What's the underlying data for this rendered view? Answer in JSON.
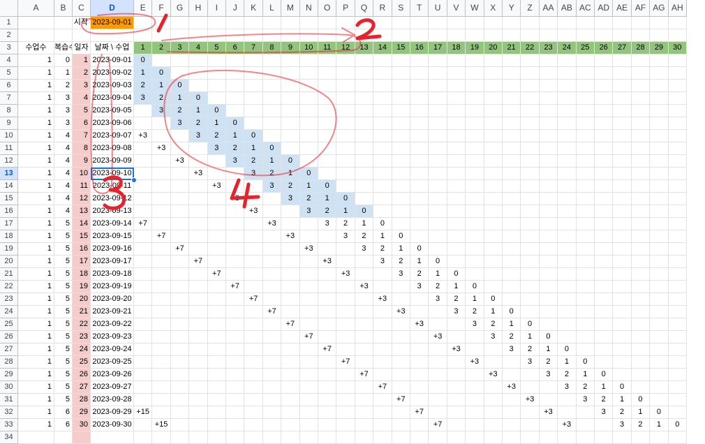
{
  "sheet": {
    "columns": [
      "A",
      "B",
      "C",
      "D",
      "E",
      "F",
      "G",
      "H",
      "I",
      "J",
      "K",
      "L",
      "M",
      "N",
      "O",
      "P",
      "Q",
      "R",
      "S",
      "T",
      "U",
      "V",
      "W",
      "X",
      "Y",
      "Z",
      "AA",
      "AB",
      "AC",
      "AD",
      "AE",
      "AF",
      "AG",
      "AH"
    ],
    "selected_column": "D",
    "selected_row": 13,
    "start_label": "시작",
    "start_date": "2023-09-01",
    "headers": [
      "수업수",
      "복습수",
      "일자",
      "날짜 \\ 수업"
    ],
    "lesson_numbers": [
      "1",
      "2",
      "3",
      "4",
      "5",
      "6",
      "7",
      "8",
      "9",
      "10",
      "11",
      "12",
      "13",
      "14",
      "15",
      "16",
      "17",
      "18",
      "19",
      "20",
      "21",
      "22",
      "23",
      "24",
      "25",
      "26",
      "27",
      "28",
      "29",
      "30"
    ],
    "data_rows": [
      {
        "row": 4,
        "a": "1",
        "b": "0",
        "c": "1",
        "d": "2023-09-01",
        "cells": [
          "0"
        ]
      },
      {
        "row": 5,
        "a": "1",
        "b": "1",
        "c": "2",
        "d": "2023-09-02",
        "cells": [
          "1",
          "0"
        ]
      },
      {
        "row": 6,
        "a": "1",
        "b": "2",
        "c": "3",
        "d": "2023-09-03",
        "cells": [
          "2",
          "1",
          "0"
        ]
      },
      {
        "row": 7,
        "a": "1",
        "b": "3",
        "c": "4",
        "d": "2023-09-04",
        "cells": [
          "3",
          "2",
          "1",
          "0"
        ]
      },
      {
        "row": 8,
        "a": "1",
        "b": "3",
        "c": "5",
        "d": "2023-09-05",
        "cells": [
          "",
          "3",
          "2",
          "1",
          "0"
        ]
      },
      {
        "row": 9,
        "a": "1",
        "b": "3",
        "c": "6",
        "d": "2023-09-06",
        "cells": [
          "",
          "",
          "3",
          "2",
          "1",
          "0"
        ]
      },
      {
        "row": 10,
        "a": "1",
        "b": "4",
        "c": "7",
        "d": "2023-09-07",
        "cells": [
          "+3",
          "",
          "",
          "3",
          "2",
          "1",
          "0"
        ]
      },
      {
        "row": 11,
        "a": "1",
        "b": "4",
        "c": "8",
        "d": "2023-09-08",
        "cells": [
          "",
          "+3",
          "",
          "",
          "3",
          "2",
          "1",
          "0"
        ]
      },
      {
        "row": 12,
        "a": "1",
        "b": "4",
        "c": "9",
        "d": "2023-09-09",
        "cells": [
          "",
          "",
          "+3",
          "",
          "",
          "3",
          "2",
          "1",
          "0"
        ]
      },
      {
        "row": 13,
        "a": "1",
        "b": "4",
        "c": "10",
        "d": "2023-09-10",
        "cells": [
          "",
          "",
          "",
          "+3",
          "",
          "",
          "3",
          "2",
          "1",
          "0"
        ]
      },
      {
        "row": 14,
        "a": "1",
        "b": "4",
        "c": "11",
        "d": "2023-09-11",
        "cells": [
          "",
          "",
          "",
          "",
          "+3",
          "",
          "",
          "3",
          "2",
          "1",
          "0"
        ]
      },
      {
        "row": 15,
        "a": "1",
        "b": "4",
        "c": "12",
        "d": "2023-09-12",
        "cells": [
          "",
          "",
          "",
          "",
          "",
          "+3",
          "",
          "",
          "3",
          "2",
          "1",
          "0"
        ]
      },
      {
        "row": 16,
        "a": "1",
        "b": "4",
        "c": "13",
        "d": "2023-09-13",
        "cells": [
          "",
          "",
          "",
          "",
          "",
          "",
          "+3",
          "",
          "",
          "3",
          "2",
          "1",
          "0"
        ]
      },
      {
        "row": 17,
        "a": "1",
        "b": "5",
        "c": "14",
        "d": "2023-09-14",
        "cells": [
          "+7",
          "",
          "",
          "",
          "",
          "",
          "",
          "+3",
          "",
          "",
          "3",
          "2",
          "1",
          "0"
        ]
      },
      {
        "row": 18,
        "a": "1",
        "b": "5",
        "c": "15",
        "d": "2023-09-15",
        "cells": [
          "",
          "+7",
          "",
          "",
          "",
          "",
          "",
          "",
          "+3",
          "",
          "",
          "3",
          "2",
          "1",
          "0"
        ]
      },
      {
        "row": 19,
        "a": "1",
        "b": "5",
        "c": "16",
        "d": "2023-09-16",
        "cells": [
          "",
          "",
          "+7",
          "",
          "",
          "",
          "",
          "",
          "",
          "+3",
          "",
          "",
          "3",
          "2",
          "1",
          "0"
        ]
      },
      {
        "row": 20,
        "a": "1",
        "b": "5",
        "c": "17",
        "d": "2023-09-17",
        "cells": [
          "",
          "",
          "",
          "+7",
          "",
          "",
          "",
          "",
          "",
          "",
          "+3",
          "",
          "",
          "3",
          "2",
          "1",
          "0"
        ]
      },
      {
        "row": 21,
        "a": "1",
        "b": "5",
        "c": "18",
        "d": "2023-09-18",
        "cells": [
          "",
          "",
          "",
          "",
          "+7",
          "",
          "",
          "",
          "",
          "",
          "",
          "+3",
          "",
          "",
          "3",
          "2",
          "1",
          "0"
        ]
      },
      {
        "row": 22,
        "a": "1",
        "b": "5",
        "c": "19",
        "d": "2023-09-19",
        "cells": [
          "",
          "",
          "",
          "",
          "",
          "+7",
          "",
          "",
          "",
          "",
          "",
          "",
          "+3",
          "",
          "",
          "3",
          "2",
          "1",
          "0"
        ]
      },
      {
        "row": 23,
        "a": "1",
        "b": "5",
        "c": "20",
        "d": "2023-09-20",
        "cells": [
          "",
          "",
          "",
          "",
          "",
          "",
          "+7",
          "",
          "",
          "",
          "",
          "",
          "",
          "+3",
          "",
          "",
          "3",
          "2",
          "1",
          "0"
        ]
      },
      {
        "row": 24,
        "a": "1",
        "b": "5",
        "c": "21",
        "d": "2023-09-21",
        "cells": [
          "",
          "",
          "",
          "",
          "",
          "",
          "",
          "+7",
          "",
          "",
          "",
          "",
          "",
          "",
          "+3",
          "",
          "",
          "3",
          "2",
          "1",
          "0"
        ]
      },
      {
        "row": 25,
        "a": "1",
        "b": "5",
        "c": "22",
        "d": "2023-09-22",
        "cells": [
          "",
          "",
          "",
          "",
          "",
          "",
          "",
          "",
          "+7",
          "",
          "",
          "",
          "",
          "",
          "",
          "+3",
          "",
          "",
          "3",
          "2",
          "1",
          "0"
        ]
      },
      {
        "row": 26,
        "a": "1",
        "b": "5",
        "c": "23",
        "d": "2023-09-23",
        "cells": [
          "",
          "",
          "",
          "",
          "",
          "",
          "",
          "",
          "",
          "+7",
          "",
          "",
          "",
          "",
          "",
          "",
          "+3",
          "",
          "",
          "3",
          "2",
          "1",
          "0"
        ]
      },
      {
        "row": 27,
        "a": "1",
        "b": "5",
        "c": "24",
        "d": "2023-09-24",
        "cells": [
          "",
          "",
          "",
          "",
          "",
          "",
          "",
          "",
          "",
          "",
          "+7",
          "",
          "",
          "",
          "",
          "",
          "",
          "+3",
          "",
          "",
          "3",
          "2",
          "1",
          "0"
        ]
      },
      {
        "row": 28,
        "a": "1",
        "b": "5",
        "c": "25",
        "d": "2023-09-25",
        "cells": [
          "",
          "",
          "",
          "",
          "",
          "",
          "",
          "",
          "",
          "",
          "",
          "+7",
          "",
          "",
          "",
          "",
          "",
          "",
          "+3",
          "",
          "",
          "3",
          "2",
          "1",
          "0"
        ]
      },
      {
        "row": 29,
        "a": "1",
        "b": "5",
        "c": "26",
        "d": "2023-09-26",
        "cells": [
          "",
          "",
          "",
          "",
          "",
          "",
          "",
          "",
          "",
          "",
          "",
          "",
          "+7",
          "",
          "",
          "",
          "",
          "",
          "",
          "+3",
          "",
          "",
          "3",
          "2",
          "1",
          "0"
        ]
      },
      {
        "row": 30,
        "a": "1",
        "b": "5",
        "c": "27",
        "d": "2023-09-27",
        "cells": [
          "",
          "",
          "",
          "",
          "",
          "",
          "",
          "",
          "",
          "",
          "",
          "",
          "",
          "+7",
          "",
          "",
          "",
          "",
          "",
          "",
          "+3",
          "",
          "",
          "3",
          "2",
          "1",
          "0"
        ]
      },
      {
        "row": 31,
        "a": "1",
        "b": "5",
        "c": "28",
        "d": "2023-09-28",
        "cells": [
          "",
          "",
          "",
          "",
          "",
          "",
          "",
          "",
          "",
          "",
          "",
          "",
          "",
          "",
          "+7",
          "",
          "",
          "",
          "",
          "",
          "",
          "+3",
          "",
          "",
          "3",
          "2",
          "1",
          "0"
        ]
      },
      {
        "row": 32,
        "a": "1",
        "b": "6",
        "c": "29",
        "d": "2023-09-29",
        "cells": [
          "+15",
          "",
          "",
          "",
          "",
          "",
          "",
          "",
          "",
          "",
          "",
          "",
          "",
          "",
          "",
          "+7",
          "",
          "",
          "",
          "",
          "",
          "",
          "+3",
          "",
          "",
          "3",
          "2",
          "1",
          "0"
        ]
      },
      {
        "row": 33,
        "a": "1",
        "b": "6",
        "c": "30",
        "d": "2023-09-30",
        "cells": [
          "",
          "+15",
          "",
          "",
          "",
          "",
          "",
          "",
          "",
          "",
          "",
          "",
          "",
          "",
          "",
          "",
          "+7",
          "",
          "",
          "",
          "",
          "",
          "",
          "+3",
          "",
          "",
          "3",
          "2",
          "1",
          "0"
        ]
      },
      {
        "row": 34,
        "a": "",
        "b": "",
        "c": "",
        "d": "",
        "cells": []
      }
    ]
  },
  "annotations": [
    {
      "text": "1",
      "color": "#e8222b"
    },
    {
      "text": "2",
      "color": "#e8222b"
    },
    {
      "text": "3",
      "color": "#e8222b"
    },
    {
      "text": "4",
      "color": "#e8222b"
    }
  ],
  "colors": {
    "start_highlight": "#ff9900",
    "lesson_header": "#93c47d",
    "day_column": "#f4cccc",
    "review_highlight": "#cfe2f3",
    "annotation_red": "#e8222b",
    "selection_blue": "#1a73e8"
  }
}
